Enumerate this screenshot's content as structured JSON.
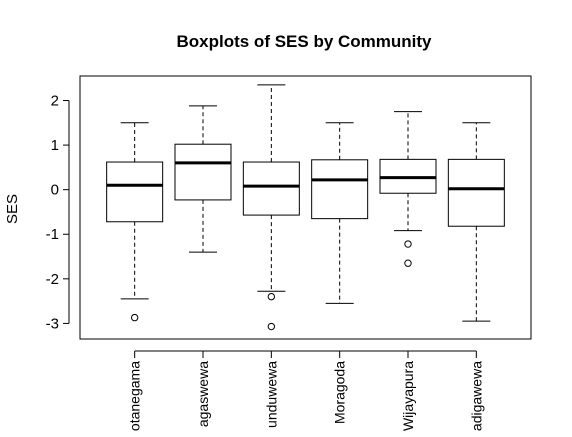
{
  "chart_data": {
    "type": "boxplot",
    "title": "Boxplots of SES by Community",
    "xlabel": "",
    "ylabel": "SES",
    "ylim": [
      -3.35,
      2.55
    ],
    "yticks": [
      -3,
      -2,
      -1,
      0,
      1,
      2
    ],
    "grid": false,
    "categories": [
      "otanegama",
      "agaswewa",
      "unduwewa",
      "Moragoda",
      "Wijayapura",
      "adigawewa"
    ],
    "boxes": [
      {
        "category": "otanegama",
        "whisker_low": -2.45,
        "q1": -0.72,
        "median": 0.1,
        "q3": 0.62,
        "whisker_high": 1.5,
        "outliers": [
          -2.87
        ]
      },
      {
        "category": "agaswewa",
        "whisker_low": -1.4,
        "q1": -0.23,
        "median": 0.6,
        "q3": 1.02,
        "whisker_high": 1.88,
        "outliers": []
      },
      {
        "category": "unduwewa",
        "whisker_low": -2.28,
        "q1": -0.57,
        "median": 0.08,
        "q3": 0.62,
        "whisker_high": 2.35,
        "outliers": [
          -2.4,
          -3.07
        ]
      },
      {
        "category": "Moragoda",
        "whisker_low": -2.55,
        "q1": -0.65,
        "median": 0.22,
        "q3": 0.67,
        "whisker_high": 1.5,
        "outliers": []
      },
      {
        "category": "Wijayapura",
        "whisker_low": -0.92,
        "q1": -0.08,
        "median": 0.27,
        "q3": 0.68,
        "whisker_high": 1.75,
        "outliers": [
          -1.22,
          -1.65
        ]
      },
      {
        "category": "adigawewa",
        "whisker_low": -2.95,
        "q1": -0.82,
        "median": 0.02,
        "q3": 0.68,
        "whisker_high": 1.5,
        "outliers": []
      }
    ]
  }
}
